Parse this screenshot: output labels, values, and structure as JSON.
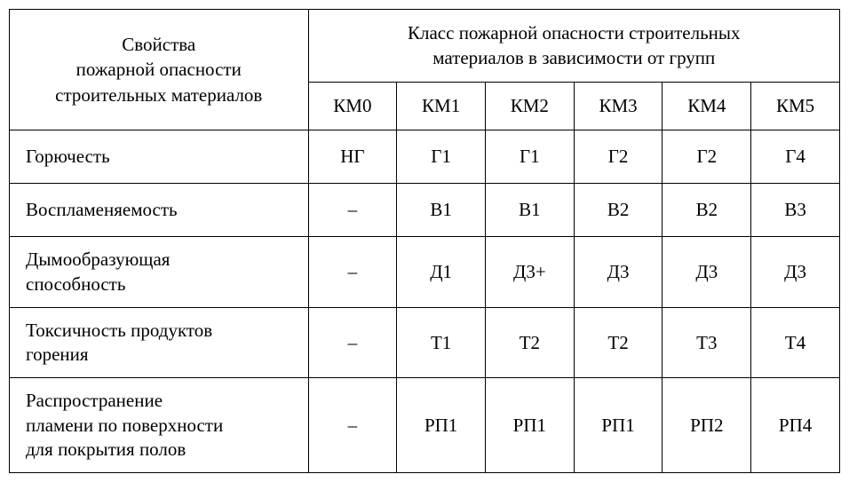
{
  "table": {
    "leftHeader": "Свойства\nпожарной опасности\nстроительных материалов",
    "groupHeader": "Класс пожарной опасности строительных\nматериалов в зависимости от групп",
    "columns": [
      "КМ0",
      "КМ1",
      "КМ2",
      "КМ3",
      "КМ4",
      "КМ5"
    ],
    "rows": [
      {
        "label": "Горючесть",
        "cells": [
          "НГ",
          "Г1",
          "Г1",
          "Г2",
          "Г2",
          "Г4"
        ]
      },
      {
        "label": "Воспламеняемость",
        "cells": [
          "–",
          "В1",
          "В1",
          "В2",
          "В2",
          "В3"
        ]
      },
      {
        "label": "Дымообразующая\nспособность",
        "cells": [
          "–",
          "Д1",
          "Д3+",
          "Д3",
          "Д3",
          "Д3"
        ]
      },
      {
        "label": "Токсичность продуктов\nгорения",
        "cells": [
          "–",
          "Т1",
          "Т2",
          "Т2",
          "Т3",
          "Т4"
        ]
      },
      {
        "label": "Распространение\nпламени по поверхности\nдля покрытия полов",
        "cells": [
          "–",
          "РП1",
          "РП1",
          "РП1",
          "РП2",
          "РП4"
        ]
      }
    ]
  },
  "styling": {
    "border_color": "#000000",
    "background_color": "#ffffff",
    "text_color": "#000000",
    "font_family": "Times New Roman",
    "font_size_pt": 16,
    "col_widths": {
      "first": 354,
      "data": 97
    }
  }
}
